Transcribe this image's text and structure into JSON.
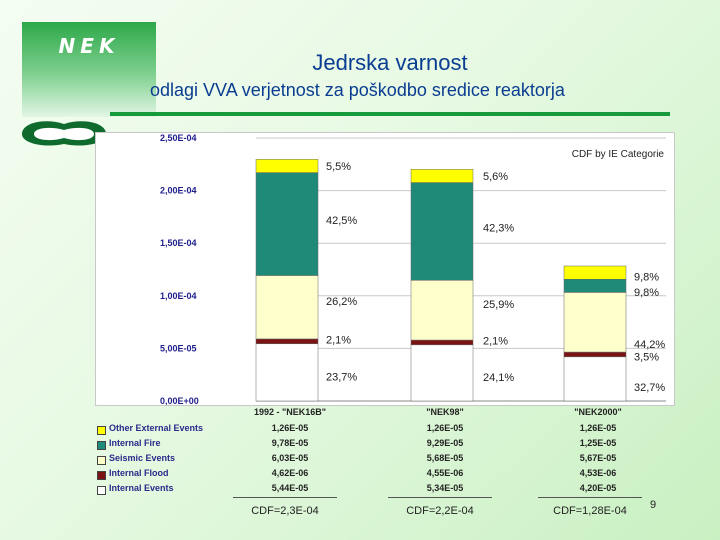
{
  "header": {
    "logo_text": "NEK",
    "title": "Jedrska varnost",
    "subtitle": "odlagi VVA verjetnost za poškodbo sredice reaktorja"
  },
  "chart_data": {
    "type": "bar",
    "stacked": true,
    "legend_title": "CDF by IE Categorie",
    "ylim": [
      0,
      0.00025
    ],
    "ytick_labels": [
      "0,00E+00",
      "5,00E-05",
      "1,00E-04",
      "1,50E-04",
      "2,00E-04",
      "2,50E-04"
    ],
    "categories": [
      "1992 - \"NEK16B\"",
      "\"NEK98\"",
      "\"NEK2000\""
    ],
    "series": [
      {
        "name": "Internal Events",
        "color": "#ffffff",
        "values": [
          5.44e-05,
          5.34e-05,
          4.2e-05
        ],
        "value_labels": [
          "5,44E-05",
          "5,34E-05",
          "4,20E-05"
        ],
        "percent_labels": [
          "23,7%",
          "24,1%",
          "32,7%"
        ]
      },
      {
        "name": "Internal Flood",
        "color": "#7a1414",
        "values": [
          4.62e-06,
          4.55e-06,
          4.53e-06
        ],
        "value_labels": [
          "4,62E-06",
          "4,55E-06",
          "4,53E-06"
        ],
        "percent_labels": [
          "2,1%",
          "2,1%",
          "3,5%"
        ]
      },
      {
        "name": "Seismic Events",
        "color": "#ffffcc",
        "values": [
          6.03e-05,
          5.68e-05,
          5.67e-05
        ],
        "value_labels": [
          "6,03E-05",
          "5,68E-05",
          "5,67E-05"
        ],
        "percent_labels": [
          "26,2%",
          "25,9%",
          "44,2%"
        ]
      },
      {
        "name": "Internal Fire",
        "color": "#1f8a78",
        "values": [
          9.78e-05,
          9.29e-05,
          1.25e-05
        ],
        "value_labels": [
          "9,78E-05",
          "9,29E-05",
          "1,25E-05"
        ],
        "percent_labels": [
          "42,5%",
          "42,3%",
          "9,8%"
        ]
      },
      {
        "name": "Other External Events",
        "color": "#ffff00",
        "values": [
          1.26e-05,
          1.26e-05,
          1.26e-05
        ],
        "value_labels": [
          "1,26E-05",
          "1,26E-05",
          "1,26E-05"
        ],
        "percent_labels": [
          "5,5%",
          "5,6%",
          "9,8%"
        ]
      }
    ],
    "totals": [
      "CDF=2,3E-04",
      "CDF=2,2E-04",
      "CDF=1,28E-04"
    ],
    "grid": true
  },
  "footer": {
    "page_number": "9"
  }
}
